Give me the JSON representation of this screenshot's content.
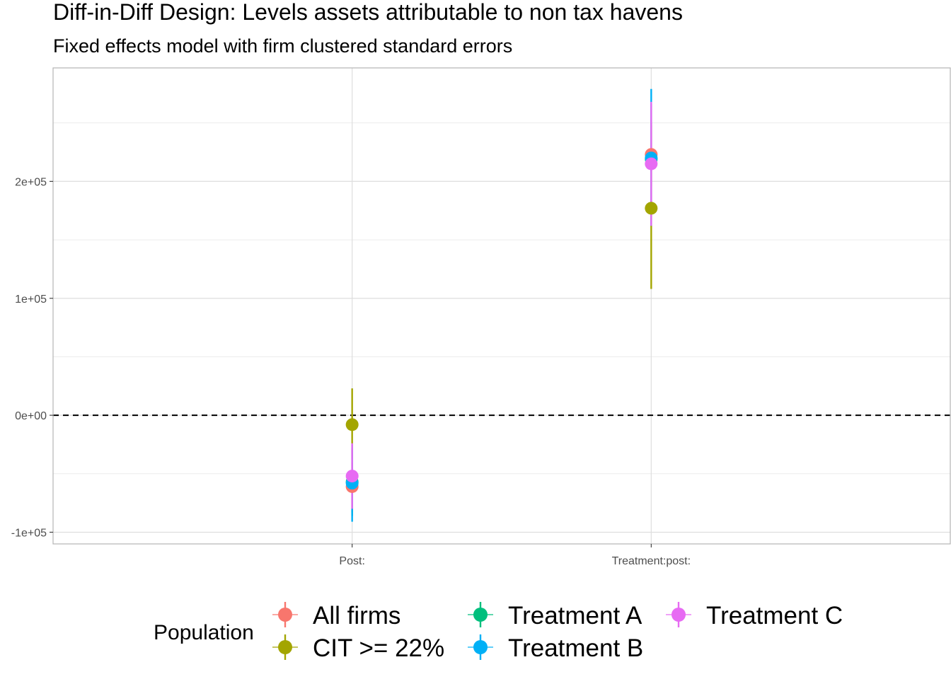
{
  "chart_data": {
    "type": "scatter",
    "title": "Diff-in-Diff Design: Levels assets attributable to non tax havens",
    "subtitle": "Fixed effects model with firm clustered standard errors",
    "xlabel": "",
    "ylabel": "",
    "categories": [
      "Post:",
      "Treatment:post:"
    ],
    "ylim": [
      -110000,
      297000
    ],
    "y_ticks": [
      {
        "value": -100000,
        "label": "-1e+05"
      },
      {
        "value": 0,
        "label": "0e+00"
      },
      {
        "value": 100000,
        "label": "1e+05"
      },
      {
        "value": 200000,
        "label": "2e+05"
      }
    ],
    "y_minor_ticks": [
      -50000,
      50000,
      150000,
      250000
    ],
    "reference_line": {
      "y": 0,
      "style": "dashed"
    },
    "grid": true,
    "legend": {
      "title": "Population",
      "position": "bottom"
    },
    "series": [
      {
        "name": "All firms",
        "color": "#F8766D",
        "points": [
          {
            "x": "Post:",
            "y": -61000,
            "low": -83000,
            "high": -40000
          },
          {
            "x": "Treatment:post:",
            "y": 223000,
            "low": 196000,
            "high": 250000
          }
        ]
      },
      {
        "name": "CIT >= 22%",
        "color": "#A3A500",
        "points": [
          {
            "x": "Post:",
            "y": -8000,
            "low": -38000,
            "high": 23000
          },
          {
            "x": "Treatment:post:",
            "y": 177000,
            "low": 108000,
            "high": 248000
          }
        ]
      },
      {
        "name": "Treatment A",
        "color": "#00BF7D",
        "points": [
          {
            "x": "Post:",
            "y": -57000,
            "low": -86000,
            "high": -28000
          },
          {
            "x": "Treatment:post:",
            "y": 219000,
            "low": 172000,
            "high": 266000
          }
        ]
      },
      {
        "name": "Treatment B",
        "color": "#00B0F6",
        "points": [
          {
            "x": "Post:",
            "y": -58000,
            "low": -91000,
            "high": -25000
          },
          {
            "x": "Treatment:post:",
            "y": 220000,
            "low": 162000,
            "high": 279000
          }
        ]
      },
      {
        "name": "Treatment C",
        "color": "#E76BF3",
        "points": [
          {
            "x": "Post:",
            "y": -52000,
            "low": -80000,
            "high": -24000
          },
          {
            "x": "Treatment:post:",
            "y": 215000,
            "low": 162000,
            "high": 268000
          }
        ]
      }
    ]
  }
}
